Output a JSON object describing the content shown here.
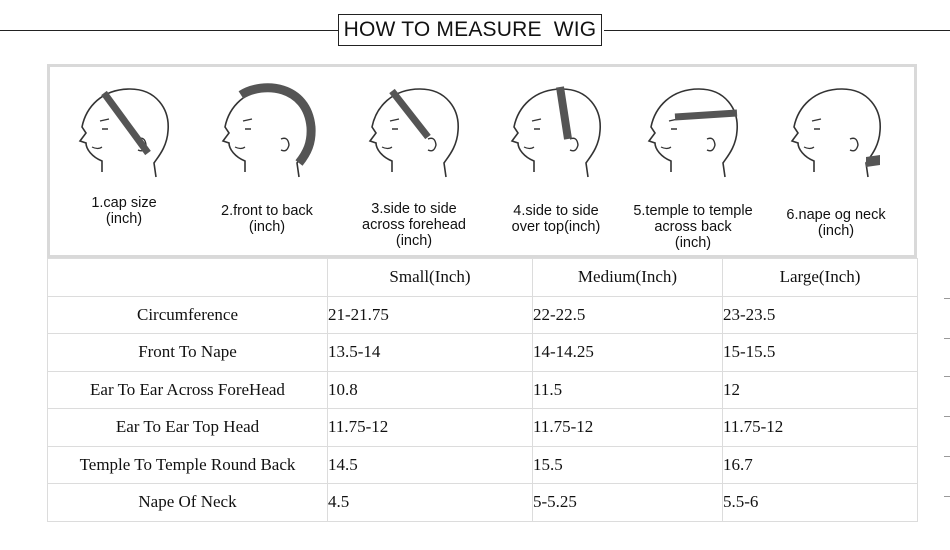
{
  "title": "HOW TO MEASURE  WIG",
  "figures": [
    {
      "caption": "1.cap size\n(inch)",
      "icon": "head-cap-size-icon"
    },
    {
      "caption": "2.front to back\n(inch)",
      "icon": "head-front-to-back-icon"
    },
    {
      "caption": "3.side to side\nacross forehead\n(inch)",
      "icon": "head-side-to-side-forehead-icon"
    },
    {
      "caption": "4.side to side\nover top(inch)",
      "icon": "head-side-to-side-top-icon"
    },
    {
      "caption": "5.temple to temple\nacross back\n(inch)",
      "icon": "head-temple-to-temple-icon"
    },
    {
      "caption": "6.nape og neck\n(inch)",
      "icon": "head-nape-of-neck-icon"
    }
  ],
  "table": {
    "headers": [
      "",
      "Small(Inch)",
      "Medium(Inch)",
      "Large(Inch)"
    ],
    "rows": [
      {
        "label": "Circumference",
        "small": "21-21.75",
        "medium": "22-22.5",
        "large": "23-23.5"
      },
      {
        "label": "Front To Nape",
        "small": "13.5-14",
        "medium": "14-14.25",
        "large": "15-15.5"
      },
      {
        "label": "Ear To Ear Across ForeHead",
        "small": "10.8",
        "medium": "11.5",
        "large": "12"
      },
      {
        "label": "Ear To Ear Top Head",
        "small": "11.75-12",
        "medium": "11.75-12",
        "large": "11.75-12"
      },
      {
        "label": "Temple To Temple Round Back",
        "small": "14.5",
        "medium": "15.5",
        "large": "16.7"
      },
      {
        "label": "Nape Of Neck",
        "small": "4.5",
        "medium": "5-5.25",
        "large": "5.5-6"
      }
    ]
  },
  "colors": {
    "band": "#555555",
    "border": "#dcdcdc",
    "panel_border": "#d9d9d9"
  }
}
